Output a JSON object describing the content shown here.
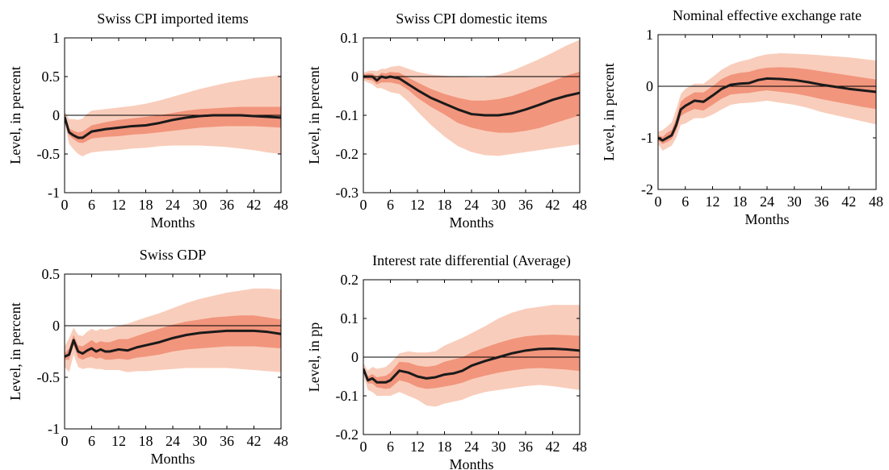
{
  "colors": {
    "band_outer": "#f9cdbb",
    "band_inner": "#f1957c",
    "median_line": "#1a1a1a",
    "zero_line": "#000000",
    "axis": "#000000"
  },
  "chart_data": [
    {
      "type": "area",
      "title": "Swiss CPI imported items",
      "xlabel": "Months",
      "ylabel": "Level, in percent",
      "xlim": [
        0,
        48
      ],
      "ylim": [
        -1,
        1
      ],
      "xticks": [
        0,
        6,
        12,
        18,
        24,
        30,
        36,
        42,
        48
      ],
      "xtick_labels": [
        "0",
        "6",
        "12",
        "18",
        "24",
        "30",
        "36",
        "42",
        "48"
      ],
      "yticks": [
        -1,
        -0.5,
        0,
        0.5,
        1
      ],
      "ytick_labels": [
        "-1",
        "-0.5",
        "0",
        "0.5",
        "1"
      ],
      "zero_line": true,
      "x": [
        0,
        1,
        2,
        3,
        4,
        5,
        6,
        9,
        12,
        15,
        18,
        21,
        24,
        27,
        30,
        33,
        36,
        39,
        42,
        45,
        48
      ],
      "median": [
        -0.02,
        -0.22,
        -0.26,
        -0.29,
        -0.29,
        -0.25,
        -0.21,
        -0.18,
        -0.16,
        -0.14,
        -0.13,
        -0.1,
        -0.06,
        -0.03,
        -0.01,
        0.0,
        0.0,
        0.0,
        -0.01,
        -0.02,
        -0.03
      ],
      "inner_lower": [
        -0.05,
        -0.26,
        -0.31,
        -0.35,
        -0.36,
        -0.33,
        -0.3,
        -0.28,
        -0.27,
        -0.25,
        -0.24,
        -0.22,
        -0.2,
        -0.18,
        -0.16,
        -0.15,
        -0.14,
        -0.14,
        -0.14,
        -0.15,
        -0.16
      ],
      "inner_upper": [
        0.0,
        -0.17,
        -0.2,
        -0.22,
        -0.21,
        -0.17,
        -0.13,
        -0.09,
        -0.06,
        -0.04,
        -0.02,
        0.0,
        0.03,
        0.06,
        0.08,
        0.09,
        0.1,
        0.11,
        0.11,
        0.11,
        0.11
      ],
      "outer_lower": [
        -0.1,
        -0.37,
        -0.44,
        -0.5,
        -0.53,
        -0.5,
        -0.48,
        -0.46,
        -0.45,
        -0.43,
        -0.42,
        -0.4,
        -0.39,
        -0.39,
        -0.39,
        -0.4,
        -0.41,
        -0.43,
        -0.45,
        -0.48,
        -0.5
      ],
      "outer_upper": [
        0.05,
        -0.05,
        -0.05,
        -0.06,
        -0.04,
        0.02,
        0.06,
        0.08,
        0.1,
        0.12,
        0.15,
        0.19,
        0.24,
        0.29,
        0.34,
        0.38,
        0.42,
        0.45,
        0.48,
        0.5,
        0.52
      ]
    },
    {
      "type": "area",
      "title": "Swiss CPI domestic items",
      "xlabel": "Months",
      "ylabel": "Level, in percent",
      "xlim": [
        0,
        48
      ],
      "ylim": [
        -0.3,
        0.1
      ],
      "xticks": [
        0,
        6,
        12,
        18,
        24,
        30,
        36,
        42,
        48
      ],
      "xtick_labels": [
        "0",
        "6",
        "12",
        "18",
        "24",
        "30",
        "36",
        "42",
        "48"
      ],
      "yticks": [
        -0.3,
        -0.2,
        -0.1,
        0,
        0.1
      ],
      "ytick_labels": [
        "-0.3",
        "-0.2",
        "-0.1",
        "0",
        "0.1"
      ],
      "zero_line": true,
      "x": [
        0,
        1,
        2,
        3,
        4,
        5,
        6,
        8,
        10,
        12,
        15,
        18,
        21,
        24,
        27,
        30,
        33,
        36,
        39,
        42,
        45,
        48
      ],
      "median": [
        0.0,
        0.0,
        0.0,
        -0.01,
        0.0,
        -0.003,
        0.0,
        -0.005,
        -0.02,
        -0.035,
        -0.055,
        -0.07,
        -0.085,
        -0.097,
        -0.1,
        -0.1,
        -0.095,
        -0.085,
        -0.073,
        -0.06,
        -0.05,
        -0.042
      ],
      "inner_lower": [
        -0.005,
        -0.008,
        -0.01,
        -0.02,
        -0.015,
        -0.015,
        -0.015,
        -0.02,
        -0.035,
        -0.055,
        -0.078,
        -0.098,
        -0.12,
        -0.132,
        -0.14,
        -0.145,
        -0.145,
        -0.14,
        -0.133,
        -0.122,
        -0.111,
        -0.1
      ],
      "inner_upper": [
        0.005,
        0.008,
        0.008,
        0.0,
        0.01,
        0.008,
        0.012,
        0.01,
        -0.003,
        -0.015,
        -0.032,
        -0.045,
        -0.055,
        -0.062,
        -0.062,
        -0.058,
        -0.05,
        -0.038,
        -0.025,
        -0.012,
        0.002,
        0.013
      ],
      "outer_lower": [
        -0.01,
        -0.015,
        -0.02,
        -0.03,
        -0.03,
        -0.035,
        -0.04,
        -0.045,
        -0.065,
        -0.09,
        -0.125,
        -0.155,
        -0.18,
        -0.195,
        -0.203,
        -0.205,
        -0.2,
        -0.195,
        -0.19,
        -0.185,
        -0.18,
        -0.175
      ],
      "outer_upper": [
        0.01,
        0.014,
        0.016,
        0.014,
        0.02,
        0.02,
        0.025,
        0.028,
        0.02,
        0.012,
        0.005,
        0.002,
        0.0,
        -0.002,
        -0.002,
        0.005,
        0.015,
        0.03,
        0.045,
        0.062,
        0.08,
        0.095
      ]
    },
    {
      "type": "area",
      "title": "Nominal effective exchange rate",
      "xlabel": "Months",
      "ylabel": "Level, in percent",
      "xlim": [
        0,
        48
      ],
      "ylim": [
        -2,
        1
      ],
      "xticks": [
        0,
        6,
        12,
        18,
        24,
        30,
        36,
        42,
        48
      ],
      "xtick_labels": [
        "0",
        "6",
        "12",
        "18",
        "24",
        "30",
        "36",
        "42",
        "48"
      ],
      "yticks": [
        -2,
        -1,
        0,
        1
      ],
      "ytick_labels": [
        "-2",
        "-1",
        "0",
        "1"
      ],
      "zero_line": true,
      "x": [
        0,
        1,
        2,
        3,
        4,
        5,
        6,
        8,
        10,
        12,
        14,
        16,
        18,
        20,
        22,
        24,
        27,
        30,
        33,
        36,
        39,
        42,
        45,
        48
      ],
      "median": [
        -1.0,
        -1.05,
        -1.0,
        -0.95,
        -0.75,
        -0.45,
        -0.38,
        -0.28,
        -0.3,
        -0.18,
        -0.05,
        0.03,
        0.05,
        0.06,
        0.12,
        0.15,
        0.14,
        0.12,
        0.08,
        0.03,
        -0.01,
        -0.05,
        -0.08,
        -0.11
      ],
      "inner_lower": [
        -1.05,
        -1.12,
        -1.08,
        -1.03,
        -0.85,
        -0.58,
        -0.52,
        -0.44,
        -0.47,
        -0.36,
        -0.24,
        -0.16,
        -0.14,
        -0.13,
        -0.1,
        -0.08,
        -0.11,
        -0.14,
        -0.19,
        -0.25,
        -0.3,
        -0.35,
        -0.4,
        -0.44
      ],
      "inner_upper": [
        -0.95,
        -0.98,
        -0.9,
        -0.85,
        -0.62,
        -0.3,
        -0.22,
        -0.12,
        -0.12,
        0.0,
        0.14,
        0.22,
        0.26,
        0.28,
        0.33,
        0.36,
        0.37,
        0.36,
        0.33,
        0.29,
        0.25,
        0.21,
        0.17,
        0.13
      ],
      "outer_lower": [
        -1.12,
        -1.25,
        -1.2,
        -1.15,
        -1.0,
        -0.75,
        -0.72,
        -0.62,
        -0.62,
        -0.55,
        -0.45,
        -0.36,
        -0.33,
        -0.32,
        -0.3,
        -0.28,
        -0.32,
        -0.36,
        -0.42,
        -0.5,
        -0.56,
        -0.62,
        -0.68,
        -0.74
      ],
      "outer_upper": [
        -0.88,
        -0.85,
        -0.78,
        -0.7,
        -0.45,
        -0.15,
        -0.05,
        0.05,
        0.05,
        0.18,
        0.32,
        0.42,
        0.48,
        0.52,
        0.58,
        0.62,
        0.64,
        0.63,
        0.62,
        0.6,
        0.58,
        0.56,
        0.53,
        0.5
      ]
    },
    {
      "type": "area",
      "title": "Swiss GDP",
      "xlabel": "Months",
      "ylabel": "Level, in percent",
      "xlim": [
        0,
        48
      ],
      "ylim": [
        -1,
        0.5
      ],
      "xticks": [
        0,
        6,
        12,
        18,
        24,
        30,
        36,
        42,
        48
      ],
      "xtick_labels": [
        "0",
        "6",
        "12",
        "18",
        "24",
        "30",
        "36",
        "42",
        "48"
      ],
      "yticks": [
        -1,
        -0.5,
        0,
        0.5
      ],
      "ytick_labels": [
        "-1",
        "-0.5",
        "0",
        "0.5"
      ],
      "zero_line": true,
      "x": [
        0,
        1,
        2,
        3,
        4,
        5,
        6,
        7,
        8,
        9,
        10,
        12,
        14,
        16,
        18,
        21,
        24,
        27,
        30,
        33,
        36,
        39,
        42,
        45,
        48
      ],
      "median": [
        -0.3,
        -0.28,
        -0.14,
        -0.25,
        -0.27,
        -0.24,
        -0.22,
        -0.25,
        -0.23,
        -0.25,
        -0.25,
        -0.23,
        -0.24,
        -0.21,
        -0.19,
        -0.16,
        -0.12,
        -0.09,
        -0.07,
        -0.06,
        -0.05,
        -0.05,
        -0.05,
        -0.06,
        -0.08
      ],
      "inner_lower": [
        -0.33,
        -0.33,
        -0.19,
        -0.31,
        -0.33,
        -0.31,
        -0.3,
        -0.32,
        -0.31,
        -0.33,
        -0.33,
        -0.32,
        -0.33,
        -0.31,
        -0.3,
        -0.28,
        -0.25,
        -0.23,
        -0.22,
        -0.21,
        -0.2,
        -0.2,
        -0.2,
        -0.21,
        -0.22
      ],
      "inner_upper": [
        -0.27,
        -0.22,
        -0.09,
        -0.19,
        -0.2,
        -0.17,
        -0.14,
        -0.17,
        -0.15,
        -0.16,
        -0.16,
        -0.13,
        -0.13,
        -0.1,
        -0.07,
        -0.03,
        0.01,
        0.04,
        0.06,
        0.08,
        0.09,
        0.1,
        0.1,
        0.08,
        0.06
      ],
      "outer_lower": [
        -0.4,
        -0.45,
        -0.28,
        -0.4,
        -0.42,
        -0.41,
        -0.41,
        -0.42,
        -0.42,
        -0.43,
        -0.43,
        -0.43,
        -0.45,
        -0.44,
        -0.44,
        -0.43,
        -0.42,
        -0.41,
        -0.41,
        -0.41,
        -0.41,
        -0.42,
        -0.43,
        -0.44,
        -0.45
      ],
      "outer_upper": [
        -0.2,
        -0.12,
        -0.02,
        -0.09,
        -0.1,
        -0.06,
        -0.03,
        -0.05,
        -0.03,
        -0.04,
        -0.03,
        0.0,
        0.02,
        0.05,
        0.08,
        0.12,
        0.17,
        0.22,
        0.26,
        0.29,
        0.32,
        0.34,
        0.36,
        0.36,
        0.35
      ]
    },
    {
      "type": "area",
      "title": "Interest rate differential (Average)",
      "xlabel": "Months",
      "ylabel": "Level, in pp",
      "xlim": [
        0,
        48
      ],
      "ylim": [
        -0.2,
        0.2
      ],
      "xticks": [
        0,
        6,
        12,
        18,
        24,
        30,
        36,
        42,
        48
      ],
      "xtick_labels": [
        "0",
        "6",
        "12",
        "18",
        "24",
        "30",
        "36",
        "42",
        "48"
      ],
      "yticks": [
        -0.2,
        -0.1,
        0,
        0.1,
        0.2
      ],
      "ytick_labels": [
        "-0.2",
        "-0.1",
        "0",
        "0.1",
        "0.2"
      ],
      "zero_line": true,
      "x": [
        0,
        1,
        2,
        3,
        4,
        5,
        6,
        8,
        10,
        12,
        14,
        16,
        18,
        20,
        22,
        24,
        27,
        30,
        33,
        36,
        39,
        42,
        45,
        48
      ],
      "median": [
        -0.03,
        -0.06,
        -0.055,
        -0.065,
        -0.065,
        -0.065,
        -0.06,
        -0.035,
        -0.04,
        -0.05,
        -0.055,
        -0.052,
        -0.045,
        -0.042,
        -0.035,
        -0.022,
        -0.01,
        0.0,
        0.01,
        0.017,
        0.021,
        0.022,
        0.02,
        0.017
      ],
      "inner_lower": [
        -0.035,
        -0.068,
        -0.068,
        -0.078,
        -0.08,
        -0.082,
        -0.08,
        -0.06,
        -0.066,
        -0.077,
        -0.082,
        -0.08,
        -0.076,
        -0.072,
        -0.066,
        -0.057,
        -0.048,
        -0.04,
        -0.034,
        -0.03,
        -0.028,
        -0.03,
        -0.032,
        -0.036
      ],
      "inner_upper": [
        -0.025,
        -0.05,
        -0.044,
        -0.052,
        -0.05,
        -0.048,
        -0.04,
        -0.012,
        -0.014,
        -0.022,
        -0.025,
        -0.022,
        -0.012,
        -0.006,
        0.0,
        0.012,
        0.025,
        0.037,
        0.047,
        0.054,
        0.057,
        0.058,
        0.057,
        0.055
      ],
      "outer_lower": [
        -0.045,
        -0.085,
        -0.09,
        -0.1,
        -0.1,
        -0.1,
        -0.1,
        -0.09,
        -0.1,
        -0.11,
        -0.125,
        -0.128,
        -0.12,
        -0.115,
        -0.11,
        -0.1,
        -0.09,
        -0.085,
        -0.08,
        -0.075,
        -0.072,
        -0.075,
        -0.08,
        -0.085
      ],
      "outer_upper": [
        -0.015,
        -0.035,
        -0.025,
        -0.03,
        -0.028,
        -0.025,
        -0.015,
        0.01,
        0.015,
        0.012,
        0.012,
        0.015,
        0.03,
        0.04,
        0.05,
        0.062,
        0.08,
        0.1,
        0.115,
        0.125,
        0.13,
        0.135,
        0.135,
        0.135
      ]
    }
  ]
}
